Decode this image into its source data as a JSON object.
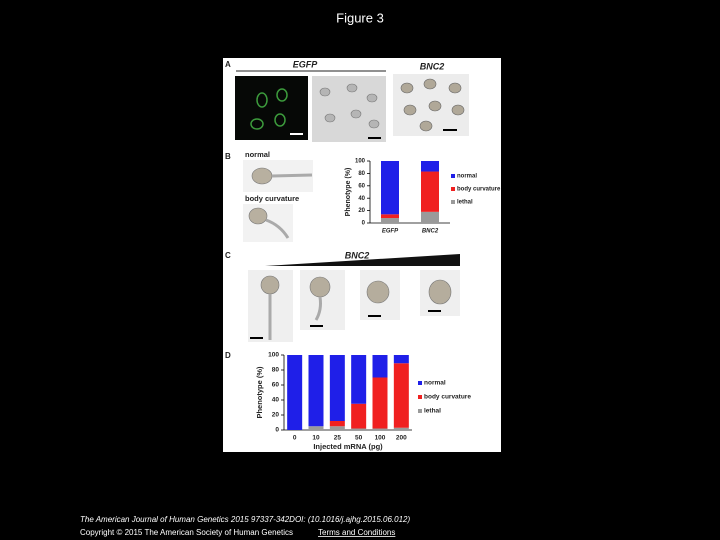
{
  "header": {
    "title": "Figure 3"
  },
  "figure": {
    "panel_labels": [
      "A",
      "B",
      "C",
      "D"
    ],
    "panel_a": {
      "headings": [
        "EGFP",
        "BNC2"
      ]
    },
    "panel_b": {
      "image_labels": [
        "normal",
        "body curvature"
      ]
    },
    "panel_c": {
      "heading": "BNC2"
    }
  },
  "chart_data": [
    {
      "type": "bar",
      "stacked": true,
      "ylabel": "Phenotype (%)",
      "categories": [
        "EGFP",
        "BNC2"
      ],
      "series": [
        {
          "name": "normal",
          "color": "#1f1fe8",
          "values": [
            86,
            17
          ]
        },
        {
          "name": "body curvature",
          "color": "#f02020",
          "values": [
            6,
            65
          ]
        },
        {
          "name": "lethal",
          "color": "#9a9a9a",
          "values": [
            8,
            18
          ]
        }
      ],
      "ylim": [
        0,
        100
      ],
      "yticks": [
        0,
        20,
        40,
        60,
        80,
        100
      ]
    },
    {
      "type": "bar",
      "stacked": true,
      "ylabel": "Phenotype (%)",
      "xlabel": "Injected mRNA (pg)",
      "categories": [
        "0",
        "10",
        "25",
        "50",
        "100",
        "200"
      ],
      "series": [
        {
          "name": "normal",
          "color": "#1f1fe8",
          "values": [
            100,
            95,
            88,
            65,
            30,
            11
          ]
        },
        {
          "name": "body curvature",
          "color": "#f02020",
          "values": [
            0,
            0,
            7,
            33,
            68,
            86
          ]
        },
        {
          "name": "lethal",
          "color": "#9a9a9a",
          "values": [
            0,
            5,
            5,
            2,
            2,
            3
          ]
        }
      ],
      "ylim": [
        0,
        100
      ],
      "yticks": [
        0,
        20,
        40,
        60,
        80,
        100
      ]
    }
  ],
  "footer": {
    "citation": "The American Journal of Human Genetics 2015 97337-342DOI: (10.1016/j.ajhg.2015.06.012)",
    "copyright": "Copyright © 2015 The American Society of Human Genetics",
    "link": "Terms and Conditions"
  }
}
